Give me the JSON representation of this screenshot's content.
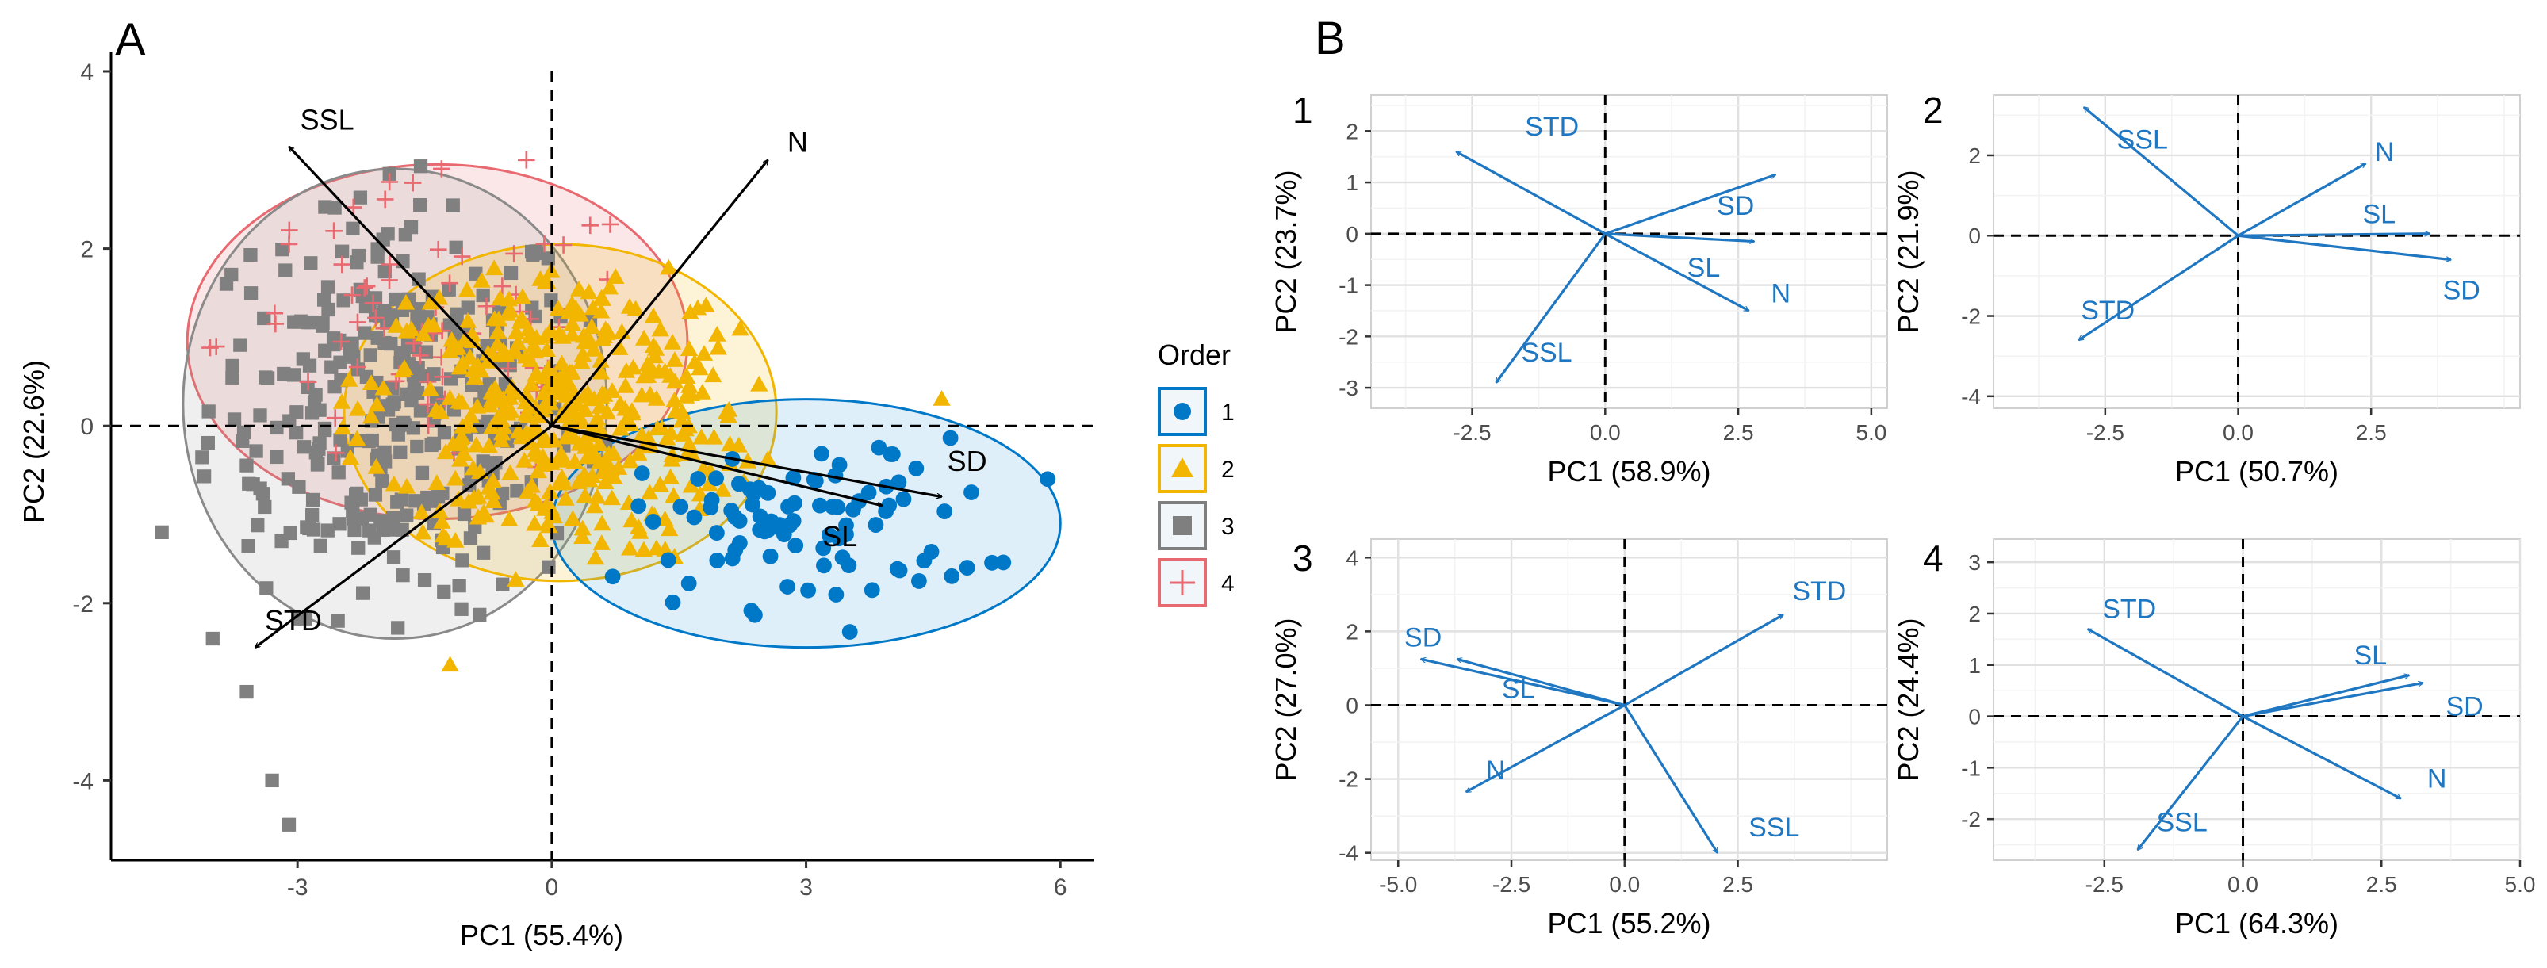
{
  "colors": {
    "arrow_black": "#000000",
    "arrow_blue": "#1f77c2",
    "order1": "#0078c8",
    "order2": "#f2b500",
    "order3": "#7f7f7f",
    "order4": "#e8696f",
    "grid_minor": "#f3f3f3",
    "grid_major": "#e1e1e1",
    "axis_text": "#4d4d4d"
  },
  "panel_A": {
    "label": "A",
    "legend": {
      "title": "Order",
      "items": [
        {
          "label": "1",
          "symbol": "circle",
          "color": "#0078c8"
        },
        {
          "label": "2",
          "symbol": "triangle",
          "color": "#f2b500"
        },
        {
          "label": "3",
          "symbol": "square",
          "color": "#7f7f7f"
        },
        {
          "label": "4",
          "symbol": "cross",
          "color": "#e8696f"
        }
      ]
    }
  },
  "panel_B": {
    "label": "B"
  },
  "chart_data": [
    {
      "id": "A",
      "type": "scatter",
      "title": "",
      "xlabel": "PC1 (55.4%)",
      "ylabel": "PC2 (22.6%)",
      "xlim": [
        -5.2,
        6.4
      ],
      "ylim": [
        -4.9,
        4.0
      ],
      "xticks": [
        -3,
        0,
        3,
        6
      ],
      "yticks": [
        -4,
        -2,
        0,
        2,
        4
      ],
      "xtick_labels": [
        "-3",
        "0",
        "3",
        "6"
      ],
      "ytick_labels": [
        "-4",
        "-2",
        "0",
        "2",
        "4"
      ],
      "grid": false,
      "legend": "right",
      "loadings": [
        {
          "name": "SSL",
          "x": -3.1,
          "y": 3.15,
          "label_x": -2.65,
          "label_y": 3.45
        },
        {
          "name": "N",
          "x": 2.55,
          "y": 3.0,
          "label_x": 2.9,
          "label_y": 3.2
        },
        {
          "name": "SD",
          "x": 4.6,
          "y": -0.8,
          "label_x": 4.9,
          "label_y": -0.4
        },
        {
          "name": "SL",
          "x": 3.9,
          "y": -0.9,
          "label_x": 3.4,
          "label_y": -1.25
        },
        {
          "name": "STD",
          "x": -3.5,
          "y": -2.5,
          "label_x": -3.05,
          "label_y": -2.2
        }
      ],
      "ellipses": [
        {
          "group": "4",
          "cx": -1.35,
          "cy": 0.95,
          "rx": 2.95,
          "ry": 2.0,
          "angle": 0,
          "fill": "#e8696f",
          "stroke": "#e8696f"
        },
        {
          "group": "3",
          "cx": -1.85,
          "cy": 0.25,
          "rx": 2.5,
          "ry": 2.65,
          "angle": 0,
          "fill": "#9a9a9a",
          "stroke": "#8a8a8a"
        },
        {
          "group": "2",
          "cx": 0.1,
          "cy": 0.15,
          "rx": 2.55,
          "ry": 1.9,
          "angle": 0,
          "fill": "#f2b500",
          "stroke": "#f2b500"
        },
        {
          "group": "1",
          "cx": 3.0,
          "cy": -1.1,
          "rx": 3.0,
          "ry": 1.4,
          "angle": 0,
          "fill": "#3a9ae0",
          "stroke": "#0078c8"
        }
      ],
      "series": [
        {
          "name": "1",
          "marker": "circle",
          "color": "#0078c8",
          "n": 90,
          "center": [
            3.0,
            -1.1
          ],
          "spread": [
            1.2,
            0.55
          ],
          "extra_points": [
            [
              5.85,
              -0.6
            ],
            [
              4.9,
              -1.6
            ],
            [
              4.95,
              -0.75
            ]
          ]
        },
        {
          "name": "2",
          "marker": "triangle",
          "color": "#f2b500",
          "n": 420,
          "center": [
            0.1,
            0.15
          ],
          "spread": [
            1.35,
            1.0
          ],
          "extra_points": [
            [
              4.6,
              0.3
            ],
            [
              -1.2,
              -2.7
            ]
          ]
        },
        {
          "name": "3",
          "marker": "square",
          "color": "#808080",
          "n": 330,
          "center": [
            -1.85,
            0.25
          ],
          "spread": [
            1.3,
            1.35
          ],
          "extra_points": [
            [
              -4.6,
              -1.2
            ],
            [
              -3.6,
              -3.0
            ],
            [
              -3.1,
              -4.5
            ],
            [
              -3.3,
              -4.0
            ],
            [
              -4.0,
              -2.4
            ]
          ]
        },
        {
          "name": "4",
          "marker": "cross",
          "color": "#e8696f",
          "n": 70,
          "center": [
            -1.35,
            0.95
          ],
          "spread": [
            1.5,
            1.0
          ],
          "extra_points": [
            [
              -0.3,
              3.0
            ],
            [
              -1.3,
              2.9
            ],
            [
              -3.1,
              2.05
            ]
          ]
        }
      ]
    },
    {
      "id": "1",
      "type": "biplot",
      "label": "1",
      "xlabel": "PC1 (58.9%)",
      "ylabel": "PC2 (23.7%)",
      "xlim": [
        -4.4,
        5.3
      ],
      "ylim": [
        -3.4,
        2.7
      ],
      "xticks": [
        -2.5,
        0,
        2.5,
        5
      ],
      "yticks": [
        -3,
        -2,
        -1,
        0,
        1,
        2
      ],
      "xtick_labels": [
        "-2.5",
        "0.0",
        "2.5",
        "5.0"
      ],
      "ytick_labels": [
        "-3",
        "-2",
        "-1",
        "0",
        "1",
        "2"
      ],
      "grid": true,
      "loadings": [
        {
          "name": "STD",
          "x": -2.8,
          "y": 1.6,
          "label_x": -1.0,
          "label_y": 2.1
        },
        {
          "name": "SD",
          "x": 3.2,
          "y": 1.15,
          "label_x": 2.45,
          "label_y": 0.55
        },
        {
          "name": "SL",
          "x": 2.8,
          "y": -0.15,
          "label_x": 1.85,
          "label_y": -0.65
        },
        {
          "name": "N",
          "x": 2.7,
          "y": -1.5,
          "label_x": 3.3,
          "label_y": -1.15
        },
        {
          "name": "SSL",
          "x": -2.05,
          "y": -2.9,
          "label_x": -1.1,
          "label_y": -2.3
        }
      ]
    },
    {
      "id": "2",
      "type": "biplot",
      "label": "2",
      "xlabel": "PC1 (50.7%)",
      "ylabel": "PC2 (21.9%)",
      "xlim": [
        -4.6,
        5.3
      ],
      "ylim": [
        -4.3,
        3.5
      ],
      "xticks": [
        -2.5,
        0,
        2.5
      ],
      "yticks": [
        -4,
        -2,
        0,
        2
      ],
      "xtick_labels": [
        "-2.5",
        "0.0",
        "2.5"
      ],
      "ytick_labels": [
        "-4",
        "-2",
        "0",
        "2"
      ],
      "grid": true,
      "loadings": [
        {
          "name": "SSL",
          "x": -2.9,
          "y": 3.2,
          "label_x": -1.8,
          "label_y": 2.4
        },
        {
          "name": "N",
          "x": 2.4,
          "y": 1.8,
          "label_x": 2.75,
          "label_y": 2.1
        },
        {
          "name": "SL",
          "x": 3.6,
          "y": 0.05,
          "label_x": 2.65,
          "label_y": 0.55
        },
        {
          "name": "SD",
          "x": 4.0,
          "y": -0.6,
          "label_x": 4.2,
          "label_y": -1.35
        },
        {
          "name": "STD",
          "x": -3.0,
          "y": -2.6,
          "label_x": -2.45,
          "label_y": -1.85
        }
      ]
    },
    {
      "id": "3",
      "type": "biplot",
      "label": "3",
      "xlabel": "PC1 (55.2%)",
      "ylabel": "PC2 (27.0%)",
      "xlim": [
        -5.6,
        5.8
      ],
      "ylim": [
        -4.2,
        4.5
      ],
      "xticks": [
        -5,
        -2.5,
        0,
        2.5
      ],
      "yticks": [
        -4,
        -2,
        0,
        2,
        4
      ],
      "xtick_labels": [
        "-5.0",
        "-2.5",
        "0.0",
        "2.5"
      ],
      "ytick_labels": [
        "-4",
        "-2",
        "0",
        "2",
        "4"
      ],
      "grid": true,
      "loadings": [
        {
          "name": "STD",
          "x": 3.5,
          "y": 2.45,
          "label_x": 4.3,
          "label_y": 3.1
        },
        {
          "name": "SD",
          "x": -4.5,
          "y": 1.25,
          "label_x": -4.45,
          "label_y": 1.85
        },
        {
          "name": "SL",
          "x": -3.7,
          "y": 1.25,
          "label_x": -2.35,
          "label_y": 0.45
        },
        {
          "name": "N",
          "x": -3.5,
          "y": -2.35,
          "label_x": -2.85,
          "label_y": -1.75
        },
        {
          "name": "SSL",
          "x": 2.05,
          "y": -4.0,
          "label_x": 3.3,
          "label_y": -3.3
        }
      ]
    },
    {
      "id": "4",
      "type": "biplot",
      "label": "4",
      "xlabel": "PC1 (64.3%)",
      "ylabel": "PC2 (24.4%)",
      "xlim": [
        -4.5,
        5.0
      ],
      "ylim": [
        -2.8,
        3.45
      ],
      "xticks": [
        -2.5,
        0,
        2.5,
        5
      ],
      "yticks": [
        -2,
        -1,
        0,
        1,
        2,
        3
      ],
      "xtick_labels": [
        "-2.5",
        "0.0",
        "2.5",
        "5.0"
      ],
      "ytick_labels": [
        "-2",
        "-1",
        "0",
        "1",
        "2",
        "3"
      ],
      "grid": true,
      "loadings": [
        {
          "name": "STD",
          "x": -2.8,
          "y": 1.7,
          "label_x": -2.05,
          "label_y": 2.1
        },
        {
          "name": "SL",
          "x": 3.0,
          "y": 0.8,
          "label_x": 2.3,
          "label_y": 1.2
        },
        {
          "name": "SD",
          "x": 3.25,
          "y": 0.65,
          "label_x": 4.0,
          "label_y": 0.2
        },
        {
          "name": "N",
          "x": 2.85,
          "y": -1.6,
          "label_x": 3.5,
          "label_y": -1.2
        },
        {
          "name": "SSL",
          "x": -1.9,
          "y": -2.6,
          "label_x": -1.1,
          "label_y": -2.05
        }
      ]
    }
  ]
}
